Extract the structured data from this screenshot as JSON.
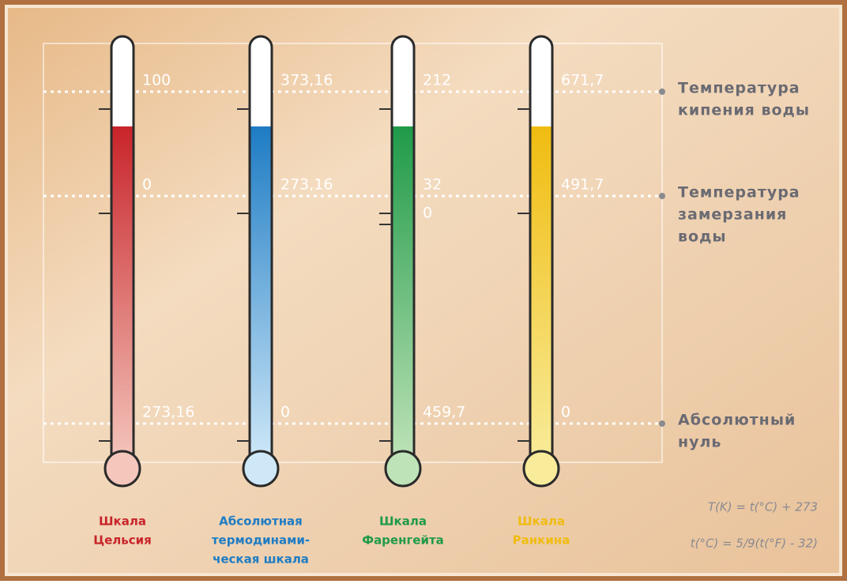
{
  "thermometers": [
    {
      "name_lines": [
        "Шкала",
        "Цельсия"
      ],
      "color": "#c8242a",
      "light": "#f4c6bc",
      "marks": [
        "100",
        "0",
        "273,16"
      ]
    },
    {
      "name_lines": [
        "Абсолютная",
        "термодинами-",
        "ческая шкала"
      ],
      "color": "#1e7cc4",
      "light": "#cfe8f8",
      "marks": [
        "373,16",
        "273,16",
        "0"
      ]
    },
    {
      "name_lines": [
        "Шкала",
        "Фаренгейта"
      ],
      "color": "#1f9a48",
      "light": "#bfe3b8",
      "marks": [
        "212",
        "32",
        "459,7"
      ],
      "extra_mark": "0"
    },
    {
      "name_lines": [
        "Шкала",
        "Ранкина"
      ],
      "color": "#f0bc10",
      "light": "#f8ec9a",
      "marks": [
        "671,7",
        "491,7",
        "0"
      ]
    }
  ],
  "references": [
    {
      "lines": [
        "Температура",
        "кипения воды"
      ]
    },
    {
      "lines": [
        "Температура",
        "замерзания",
        "воды"
      ]
    },
    {
      "lines": [
        "Абсолютный",
        "нуль"
      ]
    }
  ],
  "formulas": [
    "T(K) = t(°C) + 273",
    "t(°C) = 5/9(t(°F) - 32)"
  ]
}
